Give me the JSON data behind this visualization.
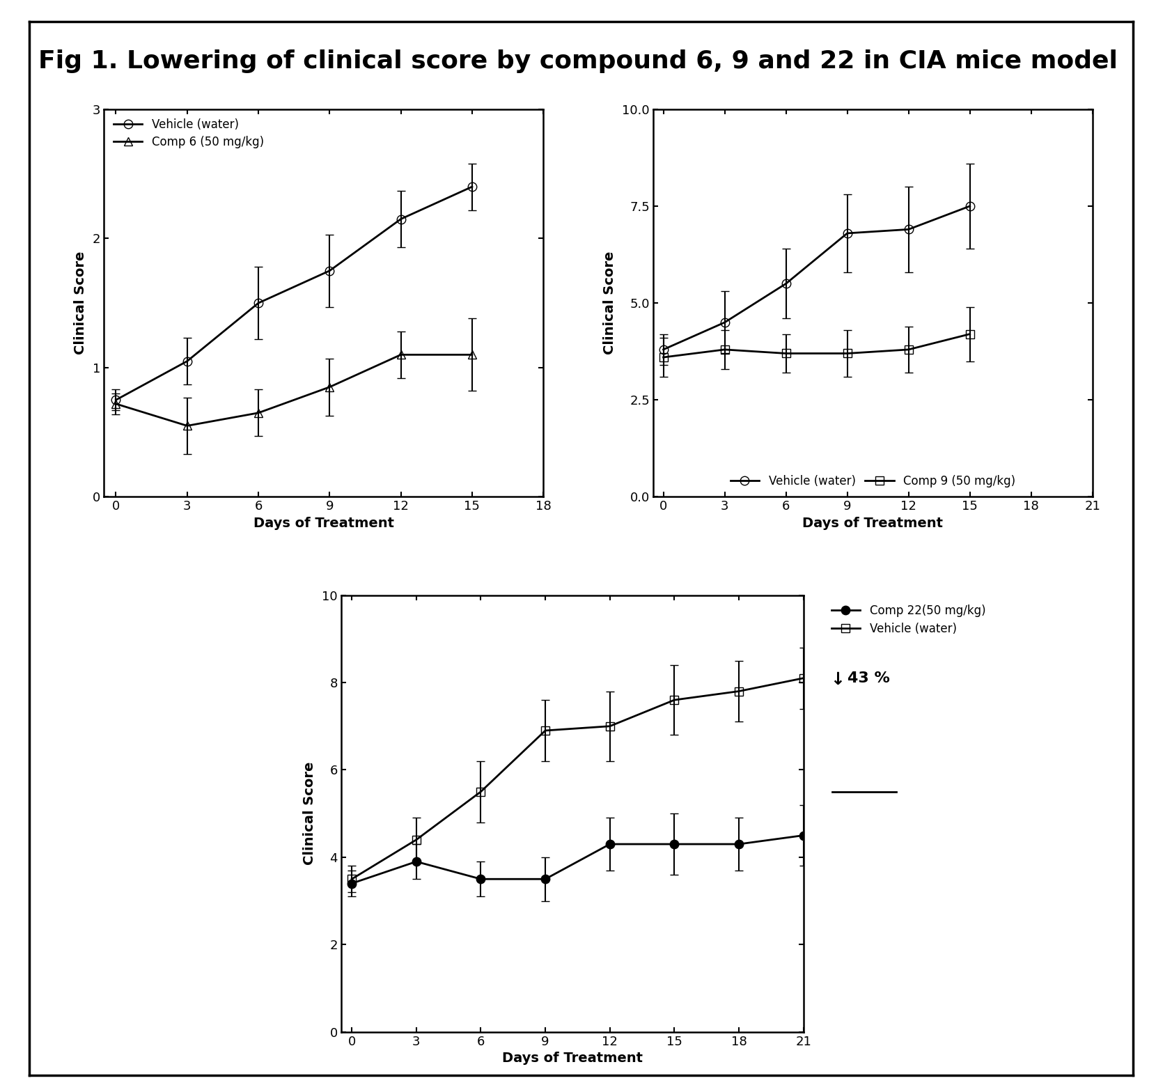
{
  "title": "Fig 1. Lowering of clinical score by compound 6, 9 and 22 in CIA mice model",
  "title_fontsize": 26,
  "plot1": {
    "x": [
      0,
      3,
      6,
      9,
      12,
      15
    ],
    "vehicle_y": [
      0.75,
      1.05,
      1.5,
      1.75,
      2.15,
      2.4
    ],
    "vehicle_err": [
      0.08,
      0.18,
      0.28,
      0.28,
      0.22,
      0.18
    ],
    "comp_y": [
      0.72,
      0.55,
      0.65,
      0.85,
      1.1,
      1.1
    ],
    "comp_err": [
      0.08,
      0.22,
      0.18,
      0.22,
      0.18,
      0.28
    ],
    "xlim": [
      -0.5,
      18
    ],
    "xticks": [
      0,
      3,
      6,
      9,
      12,
      15,
      18
    ],
    "ylim": [
      0,
      3
    ],
    "yticks": [
      0,
      1,
      2,
      3
    ],
    "xlabel": "Days of Treatment",
    "ylabel": "Clinical Score",
    "vehicle_label": "Vehicle (water)",
    "comp_label": "Comp 6 (50 mg/kg)"
  },
  "plot2": {
    "x": [
      0,
      3,
      6,
      9,
      12,
      15
    ],
    "vehicle_y": [
      3.8,
      4.5,
      5.5,
      6.8,
      6.9,
      7.5
    ],
    "vehicle_err": [
      0.4,
      0.8,
      0.9,
      1.0,
      1.1,
      1.1
    ],
    "comp_y": [
      3.6,
      3.8,
      3.7,
      3.7,
      3.8,
      4.2
    ],
    "comp_err": [
      0.5,
      0.5,
      0.5,
      0.6,
      0.6,
      0.7
    ],
    "xlim": [
      -0.5,
      21
    ],
    "xticks": [
      0,
      3,
      6,
      9,
      12,
      15,
      18,
      21
    ],
    "ylim": [
      0.0,
      10.0
    ],
    "yticks": [
      0.0,
      2.5,
      5.0,
      7.5,
      10.0
    ],
    "yticklabels": [
      "0.0",
      "2.5",
      "5.0",
      "7.5",
      "10.0"
    ],
    "xlabel": "Days of Treatment",
    "ylabel": "Clinical Score",
    "vehicle_label": "Vehicle (water)",
    "comp_label": "Comp 9 (50 mg/kg)"
  },
  "plot3": {
    "x": [
      0,
      3,
      6,
      9,
      12,
      15,
      18,
      21
    ],
    "vehicle_y": [
      3.5,
      4.4,
      5.5,
      6.9,
      7.0,
      7.6,
      7.8,
      8.1
    ],
    "vehicle_err": [
      0.3,
      0.5,
      0.7,
      0.7,
      0.8,
      0.8,
      0.7,
      0.7
    ],
    "comp_y": [
      3.4,
      3.9,
      3.5,
      3.5,
      4.3,
      4.3,
      4.3,
      4.5
    ],
    "comp_err": [
      0.3,
      0.4,
      0.4,
      0.5,
      0.6,
      0.7,
      0.6,
      0.7
    ],
    "xlim": [
      -0.5,
      21
    ],
    "xticks": [
      0,
      3,
      6,
      9,
      12,
      15,
      18,
      21
    ],
    "ylim": [
      0,
      10
    ],
    "yticks": [
      0,
      2,
      4,
      6,
      8,
      10
    ],
    "xlabel": "Days of Treatment",
    "ylabel": "Clinical Score",
    "comp_label": "Comp 22(50 mg/kg)",
    "vehicle_label": "Vehicle (water)",
    "annotation": "43 %"
  },
  "line_color": "#000000",
  "background_color": "#ffffff",
  "markersize": 9,
  "linewidth": 2.0,
  "capsize": 4,
  "elinewidth": 1.5
}
